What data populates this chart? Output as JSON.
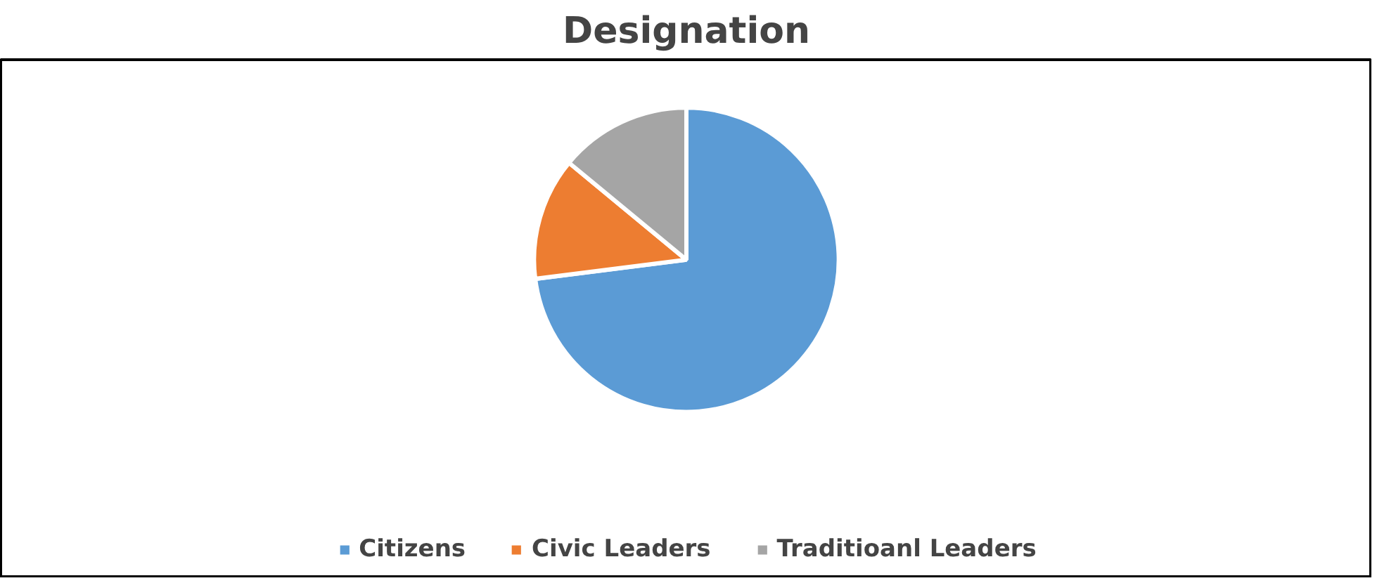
{
  "chart_data": {
    "type": "pie",
    "title": "Designation",
    "categories": [
      "Citizens",
      "Civic Leaders",
      "Traditioanl Leaders"
    ],
    "values": [
      73,
      13,
      14
    ],
    "colors": [
      "#5b9bd5",
      "#ed7d31",
      "#a5a5a5"
    ],
    "legend": "bottom"
  }
}
